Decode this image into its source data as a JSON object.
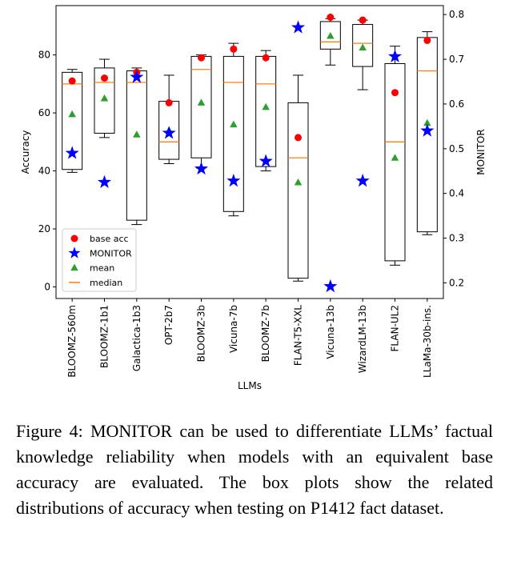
{
  "chart_data": {
    "type": "box",
    "xlabel": "LLMs",
    "ylabel_left": "Accuracy",
    "ylabel_right": "MONITOR",
    "ylim_left": [
      -4,
      97
    ],
    "ylim_right": [
      0.165,
      0.82
    ],
    "yticks_left": [
      0,
      20,
      40,
      60,
      80
    ],
    "yticks_right": [
      0.2,
      0.3,
      0.4,
      0.5,
      0.6,
      0.7,
      0.8
    ],
    "legend_position": "lower-left",
    "legend": [
      {
        "label": "base acc",
        "marker": "circle",
        "color": "#ff0000"
      },
      {
        "label": "MONITOR",
        "marker": "star",
        "color": "#0000ff"
      },
      {
        "label": "mean",
        "marker": "triangle",
        "color": "#2ca02c"
      },
      {
        "label": "median",
        "marker": "line",
        "color": "#ff7f0e"
      }
    ],
    "categories": [
      "BLOOMZ-560m",
      "BLOOMZ-1b1",
      "Galactica-1b3",
      "OPT-2b7",
      "BLOOMZ-3b",
      "Vicuna-7b",
      "BLOOMZ-7b",
      "FLAN-T5-XXL",
      "Vicuna-13b",
      "WizardLM-13b",
      "FLAN-UL2",
      "LLaMa-30b-ins."
    ],
    "boxes": [
      {
        "whisker_low": 39.5,
        "q1": 40.5,
        "median": 70.0,
        "q3": 74.0,
        "whisker_high": 75.0
      },
      {
        "whisker_low": 51.5,
        "q1": 53.0,
        "median": 70.5,
        "q3": 75.5,
        "whisker_high": 78.5
      },
      {
        "whisker_low": 21.5,
        "q1": 23.0,
        "median": 70.5,
        "q3": 74.5,
        "whisker_high": 75.5
      },
      {
        "whisker_low": 42.5,
        "q1": 44.0,
        "median": 50.0,
        "q3": 64.0,
        "whisker_high": 73.0
      },
      {
        "whisker_low": 41.0,
        "q1": 44.5,
        "median": 75.0,
        "q3": 79.5,
        "whisker_high": 80.0
      },
      {
        "whisker_low": 24.5,
        "q1": 26.0,
        "median": 70.5,
        "q3": 79.5,
        "whisker_high": 84.0
      },
      {
        "whisker_low": 40.0,
        "q1": 41.5,
        "median": 70.0,
        "q3": 79.5,
        "whisker_high": 81.5
      },
      {
        "whisker_low": 2.0,
        "q1": 3.0,
        "median": 44.5,
        "q3": 63.5,
        "whisker_high": 73.0
      },
      {
        "whisker_low": 76.5,
        "q1": 82.0,
        "median": 84.5,
        "q3": 91.5,
        "whisker_high": 92.5
      },
      {
        "whisker_low": 68.0,
        "q1": 76.0,
        "median": 84.0,
        "q3": 90.5,
        "whisker_high": 92.0
      },
      {
        "whisker_low": 7.5,
        "q1": 9.0,
        "median": 50.0,
        "q3": 77.0,
        "whisker_high": 83.0
      },
      {
        "whisker_low": 18.0,
        "q1": 19.0,
        "median": 74.5,
        "q3": 86.0,
        "whisker_high": 88.0
      }
    ],
    "base_acc": [
      71.0,
      72.0,
      74.0,
      63.5,
      79.0,
      82.0,
      79.0,
      51.5,
      93.0,
      92.0,
      67.0,
      85.0
    ],
    "mean": [
      59.5,
      65.0,
      52.5,
      54.0,
      63.5,
      56.0,
      62.0,
      36.0,
      86.5,
      82.5,
      44.5,
      56.5
    ],
    "monitor": [
      0.49,
      0.425,
      0.66,
      0.535,
      0.455,
      0.428,
      0.472,
      0.771,
      0.192,
      0.428,
      0.706,
      0.54
    ]
  },
  "caption": "Figure 4: MONITOR can be used to differentiate LLMs’ factual knowledge reliability when models with an equivalent base accuracy are evaluated. The box plots show the related distributions of accuracy when testing on P1412 fact dataset."
}
